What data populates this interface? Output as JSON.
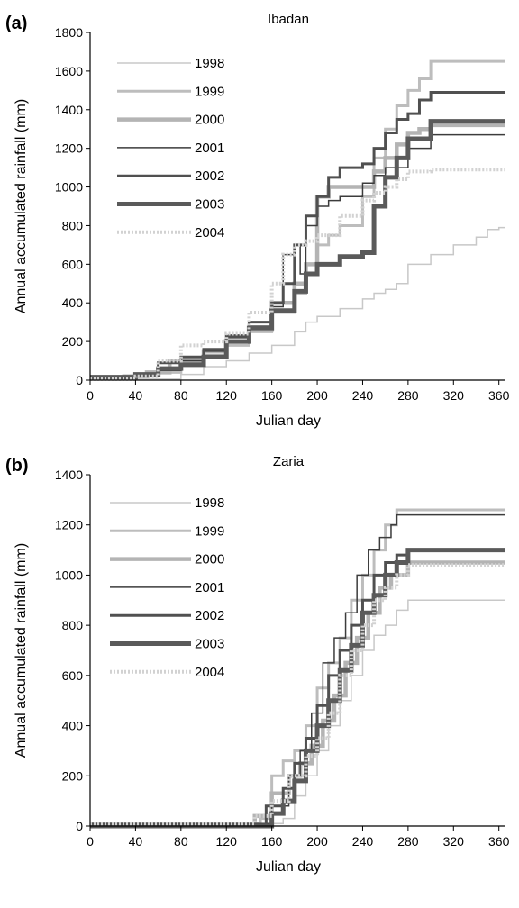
{
  "chart_data": [
    {
      "type": "line",
      "panel_label": "(a)",
      "title": "Ibadan",
      "xlabel": "Julian day",
      "ylabel": "Annual accumulated rainfall (mm)",
      "xlim": [
        0,
        365
      ],
      "ylim": [
        0,
        1800
      ],
      "xticks": [
        0,
        40,
        80,
        120,
        160,
        200,
        240,
        280,
        320,
        360
      ],
      "yticks": [
        0,
        200,
        400,
        600,
        800,
        1000,
        1200,
        1400,
        1600,
        1800
      ],
      "grid": false,
      "legend_position": "top-left",
      "series": [
        {
          "name": "1998",
          "color": "#c8c8c8",
          "width": 1.5,
          "dash": "",
          "x": [
            0,
            60,
            80,
            100,
            120,
            140,
            160,
            180,
            190,
            200,
            220,
            240,
            250,
            260,
            270,
            280,
            300,
            320,
            340,
            350,
            360,
            365
          ],
          "y": [
            5,
            5,
            30,
            70,
            100,
            140,
            180,
            250,
            300,
            330,
            370,
            420,
            450,
            470,
            500,
            600,
            650,
            700,
            740,
            780,
            790,
            790
          ]
        },
        {
          "name": "1999",
          "color": "#bdbdbd",
          "width": 3,
          "dash": "",
          "x": [
            0,
            40,
            60,
            80,
            100,
            120,
            140,
            160,
            180,
            190,
            200,
            210,
            220,
            240,
            250,
            260,
            270,
            280,
            290,
            300,
            365
          ],
          "y": [
            10,
            20,
            40,
            90,
            130,
            180,
            250,
            350,
            450,
            600,
            700,
            750,
            800,
            950,
            1150,
            1300,
            1420,
            1500,
            1560,
            1650,
            1650
          ]
        },
        {
          "name": "2000",
          "color": "#b4b4b4",
          "width": 4.5,
          "dash": "",
          "x": [
            0,
            30,
            50,
            70,
            100,
            120,
            140,
            160,
            180,
            190,
            200,
            210,
            220,
            240,
            250,
            260,
            270,
            280,
            290,
            300,
            365
          ],
          "y": [
            10,
            20,
            40,
            100,
            150,
            200,
            260,
            400,
            500,
            600,
            950,
            1000,
            1000,
            1000,
            1080,
            1150,
            1220,
            1280,
            1300,
            1320,
            1320
          ]
        },
        {
          "name": "2001",
          "color": "#3c3c3c",
          "width": 1.5,
          "dash": "",
          "x": [
            0,
            40,
            60,
            80,
            100,
            120,
            140,
            160,
            170,
            180,
            185,
            190,
            200,
            210,
            220,
            240,
            250,
            260,
            280,
            300,
            365
          ],
          "y": [
            10,
            20,
            50,
            100,
            150,
            220,
            280,
            380,
            650,
            700,
            550,
            800,
            900,
            930,
            950,
            1020,
            1060,
            1100,
            1200,
            1270,
            1270
          ]
        },
        {
          "name": "2002",
          "color": "#505050",
          "width": 3,
          "dash": "",
          "x": [
            0,
            40,
            60,
            80,
            100,
            120,
            140,
            160,
            170,
            180,
            190,
            200,
            210,
            220,
            240,
            250,
            260,
            270,
            280,
            290,
            300,
            365
          ],
          "y": [
            20,
            30,
            90,
            120,
            160,
            230,
            300,
            400,
            500,
            700,
            850,
            950,
            1050,
            1100,
            1120,
            1200,
            1280,
            1350,
            1380,
            1450,
            1490,
            1490
          ]
        },
        {
          "name": "2003",
          "color": "#5a5a5a",
          "width": 5,
          "dash": "",
          "x": [
            0,
            40,
            60,
            80,
            100,
            120,
            140,
            160,
            180,
            190,
            200,
            220,
            240,
            250,
            260,
            270,
            280,
            300,
            365
          ],
          "y": [
            15,
            30,
            60,
            80,
            120,
            200,
            270,
            360,
            460,
            550,
            600,
            640,
            660,
            900,
            1050,
            1150,
            1250,
            1340,
            1340
          ]
        },
        {
          "name": "2004",
          "color": "#d2d2d2",
          "width": 4,
          "dash": "2 2",
          "x": [
            0,
            40,
            60,
            80,
            100,
            120,
            140,
            160,
            170,
            180,
            190,
            200,
            220,
            240,
            250,
            260,
            270,
            280,
            300,
            365
          ],
          "y": [
            5,
            20,
            100,
            180,
            200,
            240,
            350,
            500,
            650,
            700,
            720,
            750,
            850,
            930,
            970,
            1000,
            1040,
            1080,
            1090,
            1090
          ]
        }
      ]
    },
    {
      "type": "line",
      "panel_label": "(b)",
      "title": "Zaria",
      "xlabel": "Julian day",
      "ylabel": "Annual accumulated rainfall (mm)",
      "xlim": [
        0,
        365
      ],
      "ylim": [
        0,
        1400
      ],
      "xticks": [
        0,
        40,
        80,
        120,
        160,
        200,
        240,
        280,
        320,
        360
      ],
      "yticks": [
        0,
        200,
        400,
        600,
        800,
        1000,
        1200,
        1400
      ],
      "grid": false,
      "legend_position": "top-left",
      "series": [
        {
          "name": "1998",
          "color": "#c8c8c8",
          "width": 1.5,
          "dash": "",
          "x": [
            0,
            130,
            150,
            170,
            180,
            190,
            200,
            210,
            220,
            230,
            240,
            250,
            260,
            270,
            280,
            365
          ],
          "y": [
            10,
            10,
            10,
            30,
            120,
            200,
            300,
            400,
            500,
            600,
            700,
            760,
            800,
            860,
            900,
            900
          ]
        },
        {
          "name": "1999",
          "color": "#bdbdbd",
          "width": 3,
          "dash": "",
          "x": [
            0,
            130,
            150,
            160,
            170,
            180,
            190,
            200,
            210,
            220,
            230,
            240,
            250,
            260,
            270,
            365
          ],
          "y": [
            10,
            10,
            30,
            200,
            260,
            300,
            400,
            550,
            650,
            750,
            900,
            1000,
            1100,
            1200,
            1260,
            1260
          ]
        },
        {
          "name": "2000",
          "color": "#b4b4b4",
          "width": 4.5,
          "dash": "",
          "x": [
            0,
            130,
            145,
            160,
            175,
            185,
            195,
            205,
            215,
            225,
            235,
            245,
            255,
            265,
            280,
            365
          ],
          "y": [
            10,
            10,
            40,
            130,
            200,
            250,
            320,
            420,
            520,
            650,
            750,
            850,
            950,
            1000,
            1050,
            1050
          ]
        },
        {
          "name": "2001",
          "color": "#3c3c3c",
          "width": 1.5,
          "dash": "",
          "x": [
            0,
            140,
            160,
            175,
            185,
            195,
            205,
            215,
            225,
            235,
            245,
            255,
            265,
            270,
            365
          ],
          "y": [
            10,
            10,
            80,
            200,
            300,
            450,
            650,
            750,
            850,
            1000,
            1100,
            1150,
            1200,
            1240,
            1240
          ]
        },
        {
          "name": "2002",
          "color": "#505050",
          "width": 3,
          "dash": "",
          "x": [
            0,
            140,
            155,
            170,
            180,
            190,
            200,
            210,
            220,
            230,
            240,
            250,
            260,
            270,
            280,
            365
          ],
          "y": [
            5,
            5,
            80,
            150,
            250,
            350,
            480,
            600,
            700,
            800,
            900,
            1000,
            1050,
            1080,
            1100,
            1100
          ]
        },
        {
          "name": "2003",
          "color": "#5a5a5a",
          "width": 5,
          "dash": "",
          "x": [
            0,
            145,
            160,
            170,
            180,
            190,
            200,
            210,
            220,
            230,
            240,
            250,
            260,
            270,
            280,
            365
          ],
          "y": [
            0,
            0,
            50,
            100,
            180,
            300,
            400,
            500,
            620,
            720,
            850,
            920,
            1000,
            1050,
            1100,
            1100
          ]
        },
        {
          "name": "2004",
          "color": "#d2d2d2",
          "width": 4,
          "dash": "2 2",
          "x": [
            0,
            130,
            145,
            160,
            175,
            190,
            200,
            210,
            220,
            230,
            240,
            250,
            260,
            270,
            280,
            365
          ],
          "y": [
            10,
            10,
            40,
            100,
            200,
            280,
            350,
            450,
            600,
            700,
            800,
            900,
            950,
            1000,
            1040,
            1040
          ]
        }
      ]
    }
  ]
}
